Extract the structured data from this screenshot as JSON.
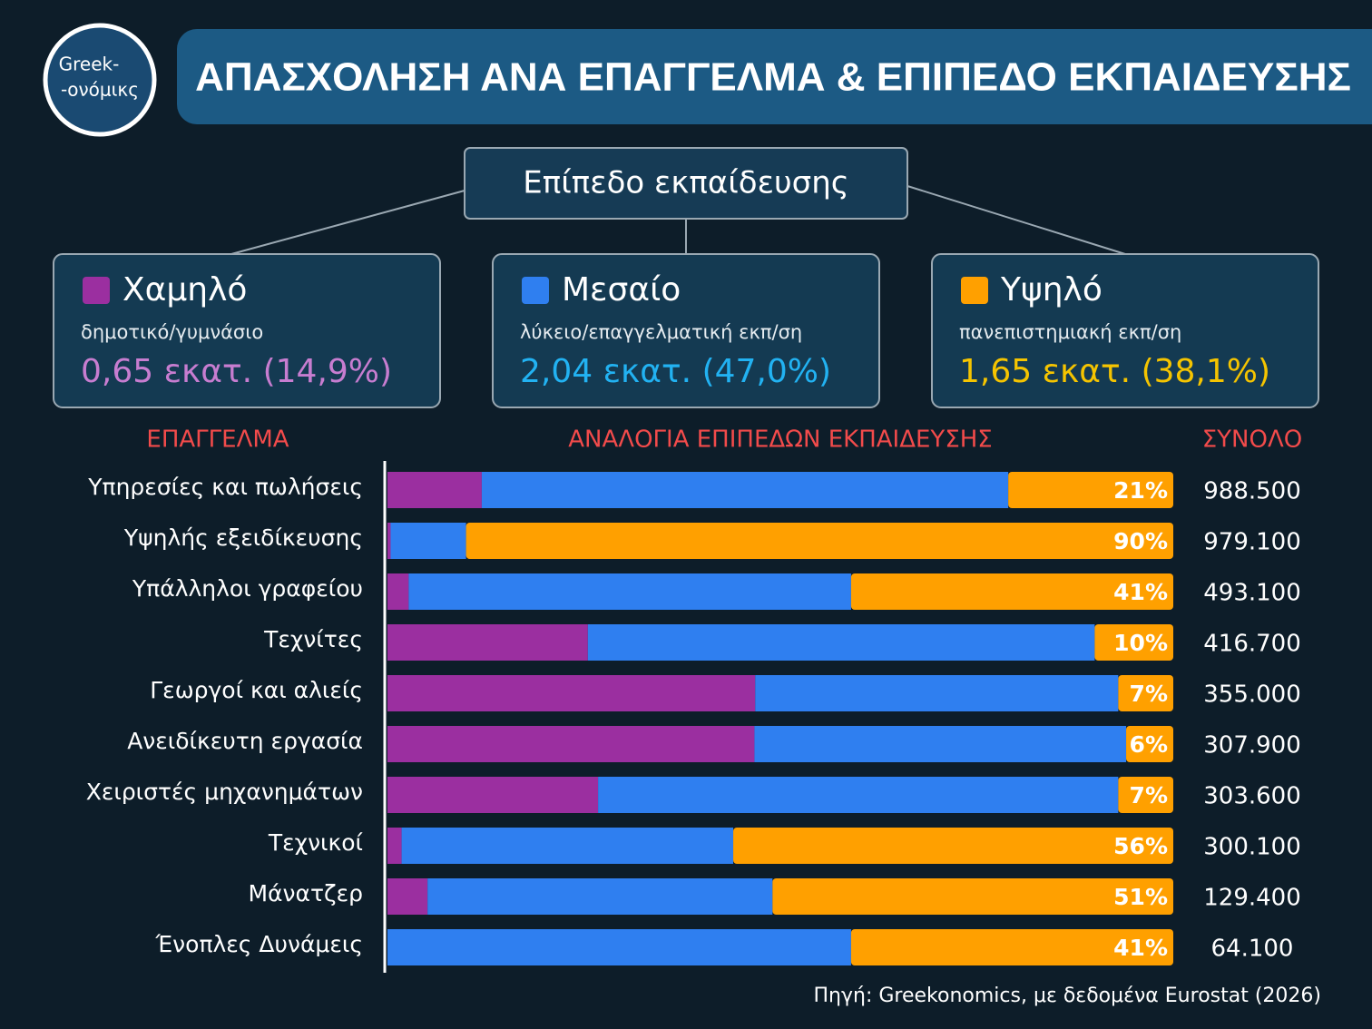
{
  "logo": {
    "line1": "Greek-",
    "line2": "-ονόμικς"
  },
  "header": {
    "title": "ΑΠΑΣΧΟΛΗΣΗ ΑΝΑ ΕΠΑΓΓΕΛΜΑ & ΕΠΙΠΕΔΟ ΕΚΠΑΙΔΕΥΣΗΣ"
  },
  "chart_data": {
    "type": "bar",
    "orientation": "horizontal",
    "stacked": true,
    "legend_title": "Επίπεδο εκπαίδευσης",
    "x_label": "ΑΝΑΛΟΓΙΑ ΕΠΙΠΕΔΩΝ ΕΚΠΑΙΔΕΥΣΗΣ",
    "y_label": "ΕΠΑΓΓΕΛΜΑ",
    "xlim": [
      0,
      100
    ],
    "categories": [
      "Υπηρεσίες και πωλήσεις",
      "Υψηλής εξειδίκευσης",
      "Υπάλληλοι γραφείου",
      "Τεχνίτες",
      "Γεωργοί και αλιείς",
      "Ανειδίκευτη εργασία",
      "Χειριστές μηχανημάτων",
      "Τεχνικοί",
      "Μάνατζερ",
      "Ένοπλες Δυνάμεις"
    ],
    "series": [
      {
        "name": "Χαμηλό",
        "description": "δημοτικό/γυμνάσιο",
        "summary": "0,65 εκατ. (14,9%)",
        "color": "#9b2fa0",
        "values": [
          12,
          0.4,
          2.7,
          25.5,
          46.8,
          46.7,
          26.8,
          1.8,
          5.1,
          0
        ]
      },
      {
        "name": "Μεσαίο",
        "description": "λύκειο/επαγγελματική εκπ/ση",
        "summary": "2,04 εκατ. (47,0%)",
        "color": "#2f7ff0",
        "values": [
          67,
          9.6,
          56.3,
          64.5,
          46.2,
          47.3,
          66.2,
          42.2,
          43.9,
          59
        ]
      },
      {
        "name": "Υψηλό",
        "description": "πανεπιστημιακή εκπ/ση",
        "summary": "1,65 εκατ. (38,1%)",
        "color": "#ffa000",
        "values": [
          21,
          90,
          41,
          10,
          7,
          6,
          7,
          56,
          51,
          41
        ],
        "value_labels": [
          "21%",
          "90%",
          "41%",
          "10%",
          "7%",
          "6%",
          "7%",
          "56%",
          "51%",
          "41%"
        ]
      }
    ],
    "total": {
      "title": "ΣΥΝΟΛΟ",
      "values": [
        988500,
        979100,
        493100,
        416700,
        355000,
        307900,
        303600,
        300100,
        129400,
        64100
      ],
      "value_labels": [
        "988.500",
        "979.100",
        "493.100",
        "416.700",
        "355.000",
        "307.900",
        "303.600",
        "300.100",
        "129.400",
        "64.100"
      ]
    }
  },
  "source": "Πηγή: Greekonomics, με δεδομένα Eurostat (2026)"
}
